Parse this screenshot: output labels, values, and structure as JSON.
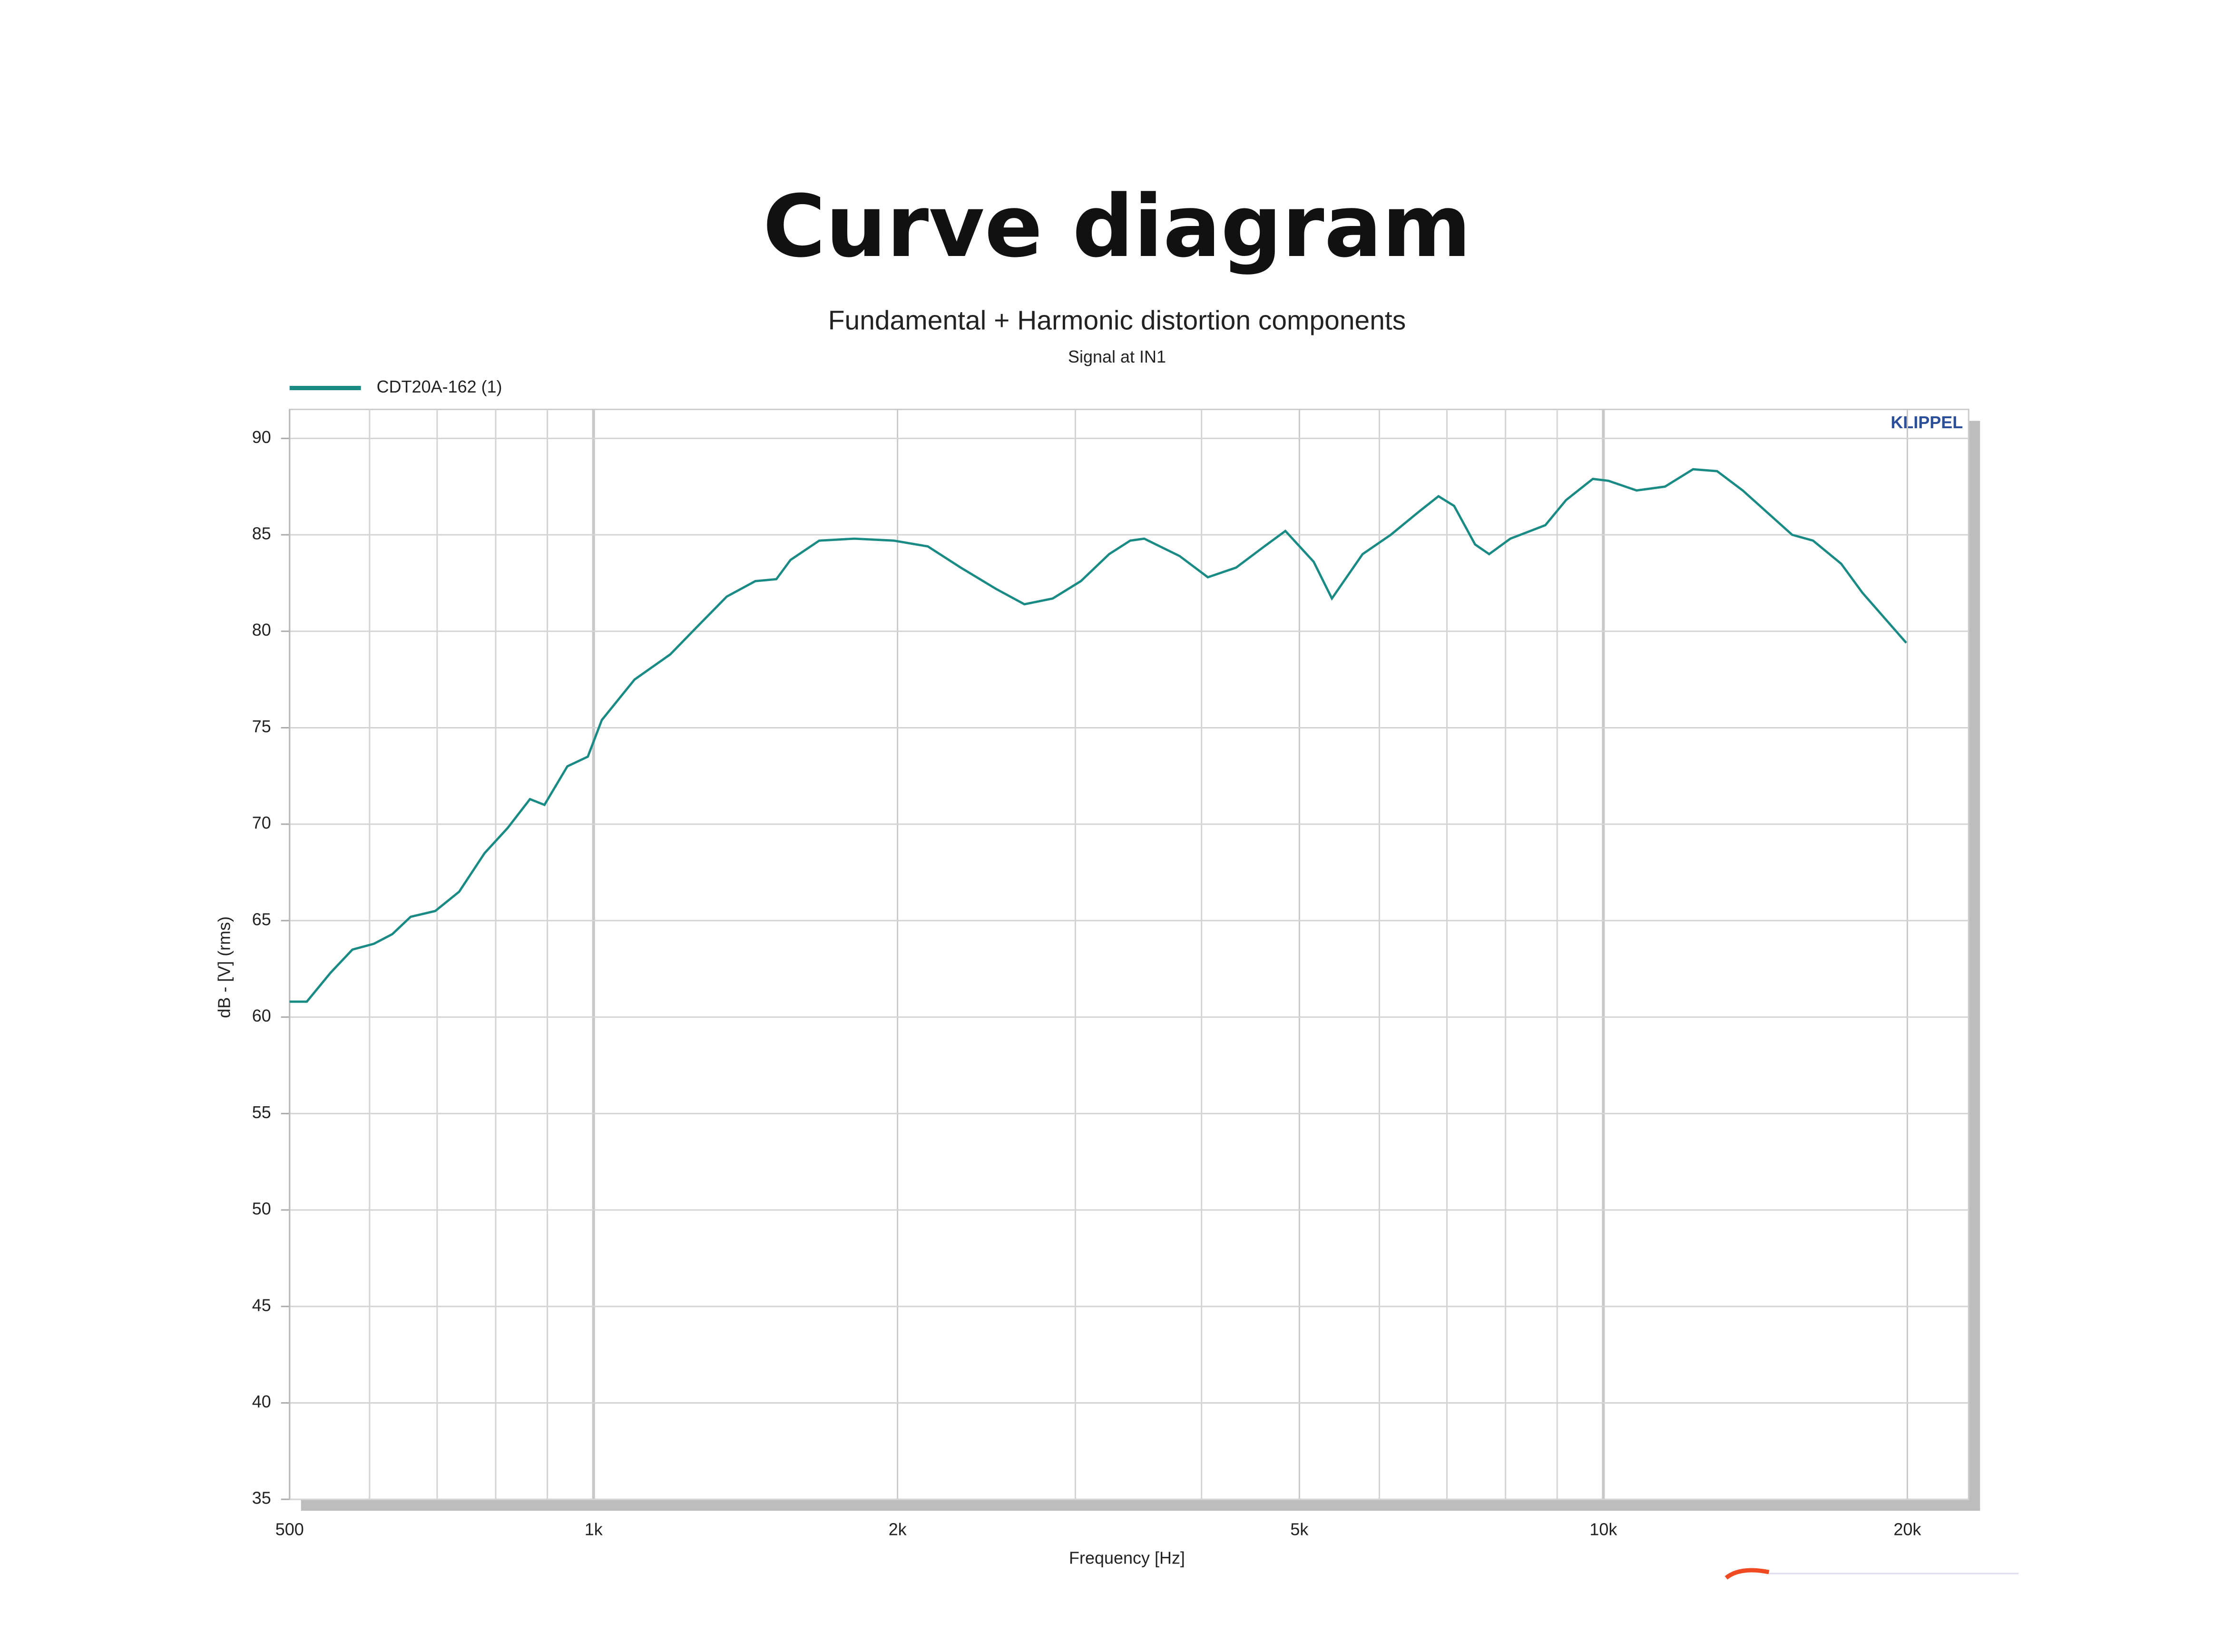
{
  "chart_data": {
    "type": "line",
    "title": "Curve diagram",
    "subtitle": "Fundamental + Harmonic distortion components",
    "caption": "Signal at IN1",
    "brand": "KLIPPEL",
    "x_label": "Frequency [Hz]",
    "y_label": "dB - [V] (rms)",
    "x_scale": "log",
    "grid": true,
    "legend": "top-left",
    "xlim": [
      500,
      23000
    ],
    "ylim": [
      35,
      91.5
    ],
    "xticks": [
      500,
      {
        "value": 1000,
        "label": "1k"
      },
      {
        "value": 2000,
        "label": "2k"
      },
      {
        "value": 5000,
        "label": "5k"
      },
      {
        "value": 10000,
        "label": "10k"
      },
      {
        "value": 20000,
        "label": "20k"
      }
    ],
    "xgrid_minor": [
      600,
      700,
      800,
      900,
      3000,
      4000,
      6000,
      7000,
      8000,
      9000
    ],
    "yticks": [
      35,
      40,
      45,
      50,
      55,
      60,
      65,
      70,
      75,
      80,
      85,
      90
    ],
    "x": [
      500,
      520,
      549,
      577,
      606,
      632,
      659,
      697,
      736,
      780,
      822,
      865,
      894,
      942,
      987,
      1019,
      1098,
      1191,
      1270,
      1355,
      1446,
      1517,
      1567,
      1673,
      1812,
      1982,
      2143,
      2310,
      2503,
      2671,
      2849,
      3038,
      3240,
      3400,
      3510,
      3805,
      4058,
      4328,
      4616,
      4843,
      5166,
      5385,
      5775,
      6158,
      6567,
      6866,
      7115,
      7464,
      7707,
      8088,
      8761,
      9184,
      9763,
      10116,
      10788,
      11510,
      12270,
      12960,
      13740,
      15380,
      16130,
      17200,
      18050,
      19950
    ],
    "series": [
      {
        "name": "CDT20A-162 (1)",
        "color": "#1a8a84",
        "values": [
          60.8,
          60.8,
          62.3,
          63.5,
          63.8,
          64.3,
          65.2,
          65.5,
          66.5,
          68.5,
          69.8,
          71.3,
          71.0,
          73.0,
          73.5,
          75.4,
          77.5,
          78.8,
          80.3,
          81.8,
          82.6,
          82.7,
          83.7,
          84.7,
          84.8,
          84.7,
          84.4,
          83.3,
          82.2,
          81.4,
          81.7,
          82.6,
          84.0,
          84.7,
          84.8,
          83.9,
          82.8,
          83.3,
          84.4,
          85.2,
          83.6,
          81.7,
          84.0,
          85.0,
          86.2,
          87.0,
          86.5,
          84.5,
          84.0,
          84.8,
          85.5,
          86.8,
          87.9,
          87.8,
          87.3,
          87.5,
          88.4,
          88.3,
          87.3,
          85.0,
          84.7,
          83.5,
          82.0,
          79.4
        ]
      }
    ]
  }
}
